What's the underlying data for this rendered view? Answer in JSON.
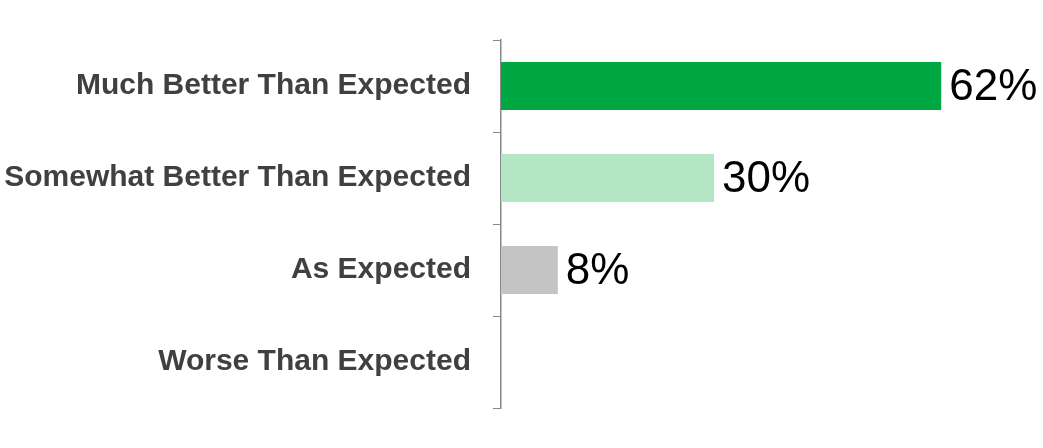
{
  "chart_data": {
    "type": "bar",
    "orientation": "horizontal",
    "categories": [
      "Much Better Than Expected",
      "Somewhat Better Than Expected",
      "As Expected",
      "Worse Than Expected"
    ],
    "values": [
      62,
      30,
      8,
      0
    ],
    "colors": [
      "#00a843",
      "#b5e6c4",
      "#c4c4c4",
      "#c4c4c4"
    ],
    "value_labels": [
      "62%",
      "30%",
      "8%",
      null
    ],
    "grid": false,
    "legend": false
  }
}
